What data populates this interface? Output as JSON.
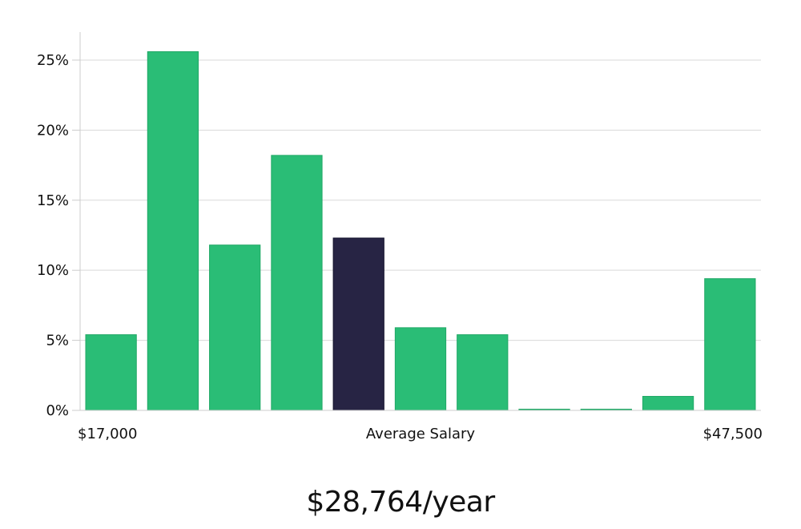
{
  "chart_data": {
    "type": "bar",
    "xlim_labels": {
      "left": "$17,000",
      "center": "Average Salary",
      "right": "$47,500"
    },
    "y_ticks": [
      "0%",
      "5%",
      "10%",
      "15%",
      "20%",
      "25%"
    ],
    "ylim": [
      0,
      27
    ],
    "grid": true,
    "values": [
      5.4,
      25.6,
      11.8,
      18.2,
      12.3,
      5.9,
      5.4,
      0.05,
      0.05,
      1.0,
      9.4
    ],
    "highlight_index": 4,
    "colors": {
      "bar": "#2abd76",
      "bar_edge": "#21a866",
      "highlight": "#272444",
      "grid": "#d9d9d9",
      "axis": "#cccccc"
    }
  },
  "summary": {
    "salary_text": "$28,764/year"
  }
}
